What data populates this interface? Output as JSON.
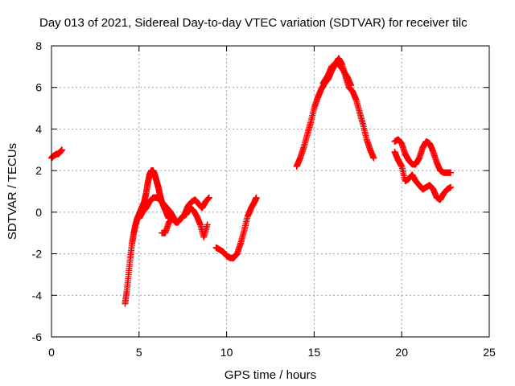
{
  "chart_data": {
    "type": "scatter",
    "title": "Day 013 of 2021, Sidereal Day-to-day VTEC variation (SDTVAR) for receiver tilc",
    "xlabel": "GPS time / hours",
    "ylabel": "SDTVAR / TECUs",
    "xlim": [
      0,
      25
    ],
    "ylim": [
      -6,
      8
    ],
    "xticks": [
      0,
      5,
      10,
      15,
      20,
      25
    ],
    "yticks": [
      -6,
      -4,
      -2,
      0,
      2,
      4,
      6,
      8
    ],
    "xtick_labels": [
      "0",
      "5",
      "10",
      "15",
      "20",
      "25"
    ],
    "ytick_labels": [
      "-6",
      "-4",
      "-2",
      "0",
      "2",
      "4",
      "6",
      "8"
    ],
    "grid": true,
    "legend": "none",
    "marker": "+",
    "color": "#ff0000",
    "series": [
      {
        "name": "seg1",
        "x": [
          0.0,
          0.1,
          0.2,
          0.3,
          0.4,
          0.5,
          0.6
        ],
        "y": [
          2.6,
          2.7,
          2.75,
          2.8,
          2.8,
          2.9,
          3.0
        ]
      },
      {
        "name": "seg2",
        "x": [
          4.2,
          4.3,
          4.4,
          4.5,
          4.6,
          4.7,
          4.8,
          4.9,
          5.0,
          5.1,
          5.2,
          5.3,
          5.4,
          5.5,
          5.6,
          5.7,
          5.8,
          5.9,
          6.0,
          6.1,
          6.2,
          6.3,
          6.4,
          6.5,
          6.6,
          6.7
        ],
        "y": [
          -4.4,
          -3.8,
          -3.0,
          -2.2,
          -1.5,
          -1.0,
          -0.6,
          -0.3,
          -0.1,
          0.1,
          0.3,
          0.5,
          0.9,
          1.4,
          1.8,
          2.0,
          2.0,
          1.8,
          1.5,
          1.2,
          0.8,
          0.5,
          0.3,
          0.1,
          -0.1,
          -0.3
        ]
      },
      {
        "name": "seg3",
        "x": [
          5.0,
          5.2,
          5.4,
          5.6,
          5.8,
          6.0,
          6.2,
          6.4,
          6.6,
          6.8,
          7.0,
          7.2,
          7.4,
          7.6,
          7.8,
          8.0,
          8.2,
          8.4,
          8.6,
          8.8,
          9.0
        ],
        "y": [
          -0.3,
          0.0,
          0.2,
          0.5,
          0.7,
          0.7,
          0.6,
          0.4,
          0.2,
          0.0,
          -0.3,
          -0.5,
          -0.3,
          -0.1,
          0.3,
          0.5,
          0.6,
          0.4,
          0.2,
          0.5,
          0.7
        ]
      },
      {
        "name": "seg4",
        "x": [
          6.3,
          6.5,
          6.7,
          6.9,
          7.1,
          7.3,
          7.5,
          7.7,
          7.9,
          8.1,
          8.3,
          8.5,
          8.7,
          8.9
        ],
        "y": [
          -1.0,
          -1.0,
          -0.5,
          -0.3,
          -0.5,
          -0.4,
          -0.2,
          -0.1,
          0.2,
          0.1,
          -0.2,
          -0.6,
          -1.2,
          -0.6
        ]
      },
      {
        "name": "seg5",
        "x": [
          9.4,
          9.6,
          9.8,
          10.0,
          10.2,
          10.4,
          10.6,
          10.8,
          11.0,
          11.2,
          11.4,
          11.6,
          11.7
        ],
        "y": [
          -1.7,
          -1.8,
          -1.9,
          -2.1,
          -2.2,
          -2.2,
          -2.0,
          -1.5,
          -0.9,
          -0.2,
          0.2,
          0.5,
          0.7
        ]
      },
      {
        "name": "seg6",
        "x": [
          14.0,
          14.2,
          14.4,
          14.6,
          14.8,
          15.0,
          15.2,
          15.4,
          15.6,
          15.8,
          16.0,
          16.2,
          16.4,
          16.6,
          16.8,
          17.0,
          17.2,
          17.4,
          17.6,
          17.8,
          18.0,
          18.2,
          18.4
        ],
        "y": [
          2.2,
          2.6,
          3.1,
          3.7,
          4.3,
          5.0,
          5.5,
          5.9,
          6.2,
          6.4,
          6.8,
          7.1,
          7.4,
          7.1,
          6.5,
          6.0,
          5.8,
          5.4,
          4.8,
          4.2,
          3.5,
          3.0,
          2.6
        ]
      },
      {
        "name": "seg7",
        "x": [
          15.5,
          15.8,
          16.0,
          16.3,
          16.6,
          16.9,
          17.1
        ],
        "y": [
          6.2,
          6.6,
          7.0,
          7.2,
          6.9,
          6.5,
          6.1
        ]
      },
      {
        "name": "seg8",
        "x": [
          19.6,
          19.8,
          20.0,
          20.2,
          20.4,
          20.6,
          20.8,
          21.0,
          21.2,
          21.4,
          21.6,
          21.8,
          22.0,
          22.2,
          22.4,
          22.6,
          22.8
        ],
        "y": [
          3.4,
          3.5,
          3.3,
          2.8,
          2.5,
          2.3,
          2.3,
          2.6,
          3.1,
          3.4,
          3.3,
          2.9,
          2.4,
          2.0,
          1.9,
          1.9,
          1.9
        ]
      },
      {
        "name": "seg9",
        "x": [
          19.6,
          19.8,
          20.0,
          20.2,
          20.4,
          20.6,
          20.8,
          21.0,
          21.2,
          21.4,
          21.6,
          21.8,
          22.0,
          22.2,
          22.4,
          22.6,
          22.8
        ],
        "y": [
          2.9,
          2.5,
          2.2,
          1.5,
          1.6,
          1.8,
          1.5,
          1.3,
          1.1,
          1.2,
          1.3,
          1.1,
          0.7,
          0.6,
          0.9,
          1.1,
          1.2
        ]
      }
    ]
  }
}
